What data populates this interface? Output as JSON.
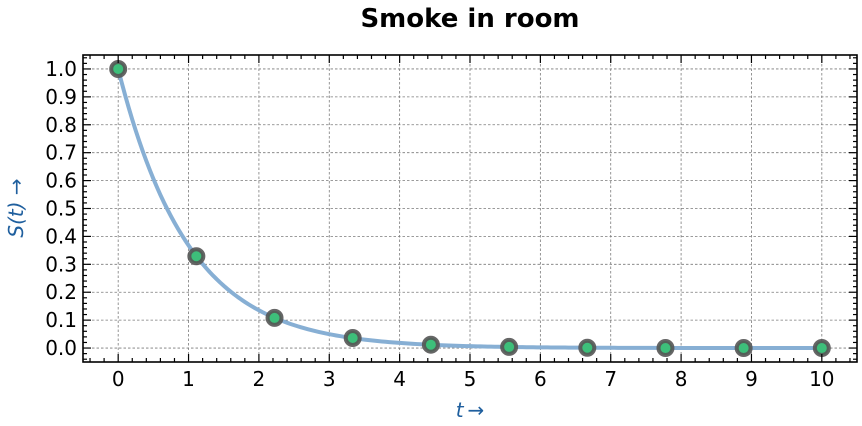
{
  "chart_data": {
    "type": "line",
    "title": "Smoke in room",
    "xlabel": "t →",
    "ylabel": "S(t) →",
    "xlim": [
      -0.5,
      10.5
    ],
    "ylim": [
      -0.05,
      1.05
    ],
    "x_ticks": [
      "0",
      "1",
      "2",
      "3",
      "4",
      "5",
      "6",
      "7",
      "8",
      "9",
      "10"
    ],
    "y_ticks": [
      "0.0",
      "0.1",
      "0.2",
      "0.3",
      "0.4",
      "0.5",
      "0.6",
      "0.7",
      "0.8",
      "0.9",
      "1.0"
    ],
    "grid": true,
    "series": [
      {
        "style": "curve",
        "color": "#87afd4",
        "function": "exp(-t)",
        "x_range": [
          0,
          10
        ]
      },
      {
        "style": "markers",
        "color": "#3dbf7a",
        "x": [
          0,
          1.111,
          2.222,
          3.333,
          4.444,
          5.556,
          6.667,
          7.778,
          8.889,
          10
        ],
        "y": [
          1.0,
          0.329,
          0.108,
          0.036,
          0.012,
          0.004,
          0.001,
          0.0,
          0.0,
          0.0
        ]
      }
    ]
  }
}
